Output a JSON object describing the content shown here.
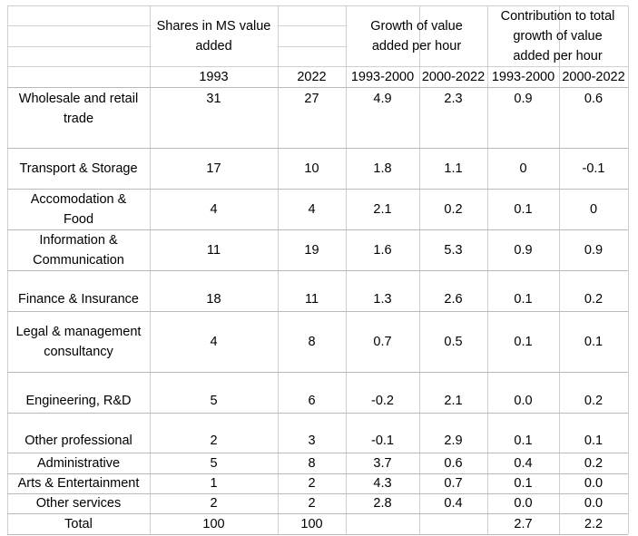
{
  "headers": {
    "shares": "Shares in MS value\nadded",
    "growth": "Growth of value\nadded per hour",
    "contribution": "Contribution to total\ngrowth of value\nadded per hour",
    "years": [
      "1993",
      "2022",
      "1993-2000",
      "2000-2022",
      "1993-2000",
      "2000-2022"
    ]
  },
  "rows": [
    {
      "label": "Wholesale and retail\ntrade",
      "values": [
        "31",
        "27",
        "4.9",
        "2.3",
        "0.9",
        "0.6"
      ]
    },
    {
      "label": "Transport & Storage",
      "values": [
        "17",
        "10",
        "1.8",
        "1.1",
        "0",
        "-0.1"
      ]
    },
    {
      "label": "Accomodation &\nFood",
      "values": [
        "4",
        "4",
        "2.1",
        "0.2",
        "0.1",
        "0"
      ]
    },
    {
      "label": "Information &\nCommunication",
      "values": [
        "11",
        "19",
        "1.6",
        "5.3",
        "0.9",
        "0.9"
      ]
    },
    {
      "label": "Finance & Insurance",
      "values": [
        "18",
        "11",
        "1.3",
        "2.6",
        "0.1",
        "0.2"
      ]
    },
    {
      "label": "Legal & management\nconsultancy",
      "values": [
        "4",
        "8",
        "0.7",
        "0.5",
        "0.1",
        "0.1"
      ]
    },
    {
      "label": "Engineering, R&D",
      "values": [
        "5",
        "6",
        "-0.2",
        "2.1",
        "0.0",
        "0.2"
      ]
    },
    {
      "label": "Other professional",
      "values": [
        "2",
        "3",
        "-0.1",
        "2.9",
        "0.1",
        "0.1"
      ]
    },
    {
      "label": "Administrative",
      "values": [
        "5",
        "8",
        "3.7",
        "0.6",
        "0.4",
        "0.2"
      ]
    },
    {
      "label": "Arts & Entertainment",
      "values": [
        "1",
        "2",
        "4.3",
        "0.7",
        "0.1",
        "0.0"
      ]
    },
    {
      "label": "Other services",
      "values": [
        "2",
        "2",
        "2.8",
        "0.4",
        "0.0",
        "0.0"
      ]
    },
    {
      "label": "Total",
      "values": [
        "100",
        "100",
        "",
        "",
        "2.7",
        "2.2"
      ]
    }
  ]
}
